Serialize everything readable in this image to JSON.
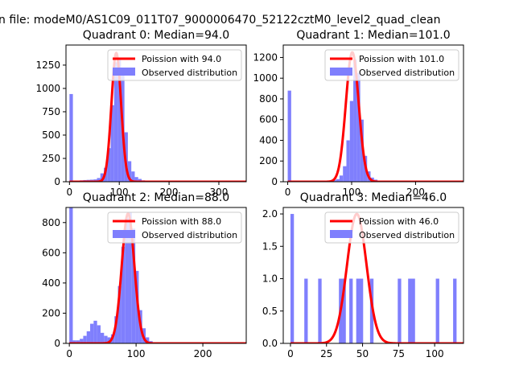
{
  "suptitle": "n file: modeM0/AS1C09_011T07_9000006470_52122cztM0_level2_quad_clean",
  "colors": {
    "hist": "#7f7ffd",
    "poisson": "#ff0000",
    "axes": "#000000",
    "background": "#ffffff"
  },
  "chart_data": [
    {
      "type": "bar",
      "title": "Quadrant 0: Median=94.0",
      "xlim": [
        -7,
        355
      ],
      "ylim": [
        0,
        1465
      ],
      "xticks": [
        0,
        100,
        200,
        300
      ],
      "xtick_labels": [
        "0",
        "100",
        "200",
        "300"
      ],
      "yticks": [
        0,
        250,
        500,
        750,
        1000,
        1250
      ],
      "ytick_labels": [
        "0",
        "250",
        "500",
        "750",
        "1000",
        "1250"
      ],
      "legend": {
        "placement": "upper-right",
        "entries": [
          "Poission with 94.0",
          "Observed distribution"
        ]
      },
      "poisson_mean": 94.0,
      "poisson_peak": 1380,
      "bin_width": 6.9,
      "bins": [
        {
          "x": 0,
          "y": 940
        },
        {
          "x": 13.8,
          "y": 12
        },
        {
          "x": 20.7,
          "y": 15
        },
        {
          "x": 27.6,
          "y": 18
        },
        {
          "x": 34.5,
          "y": 20
        },
        {
          "x": 41.4,
          "y": 22
        },
        {
          "x": 48.3,
          "y": 25
        },
        {
          "x": 55.2,
          "y": 40
        },
        {
          "x": 62.1,
          "y": 90
        },
        {
          "x": 69.0,
          "y": 150
        },
        {
          "x": 75.9,
          "y": 360
        },
        {
          "x": 82.8,
          "y": 820
        },
        {
          "x": 89.7,
          "y": 1280
        },
        {
          "x": 96.6,
          "y": 1330
        },
        {
          "x": 103.5,
          "y": 1150
        },
        {
          "x": 110.4,
          "y": 530
        },
        {
          "x": 117.3,
          "y": 220
        },
        {
          "x": 124.2,
          "y": 110
        },
        {
          "x": 131.1,
          "y": 50
        },
        {
          "x": 138.0,
          "y": 30
        },
        {
          "x": 144.9,
          "y": 15
        },
        {
          "x": 151.8,
          "y": 10
        }
      ]
    },
    {
      "type": "bar",
      "title": "Quadrant 1: Median=101.0",
      "xlim": [
        -7,
        275
      ],
      "ylim": [
        0,
        1320
      ],
      "xticks": [
        0,
        100,
        200
      ],
      "xtick_labels": [
        "0",
        "100",
        "200"
      ],
      "yticks": [
        0,
        200,
        400,
        600,
        800,
        1000,
        1200
      ],
      "ytick_labels": [
        "0",
        "200",
        "400",
        "600",
        "800",
        "1000",
        "1200"
      ],
      "legend": {
        "placement": "upper-right",
        "entries": [
          "Poission with 101.0",
          "Observed distribution"
        ]
      },
      "poisson_mean": 101.0,
      "poisson_peak": 1250,
      "bin_width": 5.4,
      "bins": [
        {
          "x": 0,
          "y": 880
        },
        {
          "x": 54.0,
          "y": 5
        },
        {
          "x": 59.4,
          "y": 8
        },
        {
          "x": 64.8,
          "y": 10
        },
        {
          "x": 70.2,
          "y": 15
        },
        {
          "x": 75.6,
          "y": 25
        },
        {
          "x": 81.0,
          "y": 60
        },
        {
          "x": 86.4,
          "y": 150
        },
        {
          "x": 91.8,
          "y": 400
        },
        {
          "x": 97.2,
          "y": 780
        },
        {
          "x": 102.6,
          "y": 1180
        },
        {
          "x": 108.0,
          "y": 1050
        },
        {
          "x": 113.4,
          "y": 600
        },
        {
          "x": 118.8,
          "y": 250
        },
        {
          "x": 124.2,
          "y": 100
        },
        {
          "x": 129.6,
          "y": 40
        },
        {
          "x": 135.0,
          "y": 20
        },
        {
          "x": 140.4,
          "y": 10
        },
        {
          "x": 145.8,
          "y": 6
        },
        {
          "x": 151.2,
          "y": 4
        }
      ]
    },
    {
      "type": "bar",
      "title": "Quadrant 2: Median=88.0",
      "xlim": [
        -5,
        265
      ],
      "ylim": [
        0,
        900
      ],
      "xticks": [
        0,
        100,
        200
      ],
      "xtick_labels": [
        "0",
        "100",
        "200"
      ],
      "yticks": [
        0,
        200,
        400,
        600,
        800
      ],
      "ytick_labels": [
        "0",
        "200",
        "400",
        "600",
        "800"
      ],
      "legend": {
        "placement": "upper-right",
        "entries": [
          "Poission with 88.0",
          "Observed distribution"
        ]
      },
      "poisson_mean": 88.0,
      "poisson_peak": 860,
      "bin_width": 5.2,
      "bins": [
        {
          "x": 0,
          "y": 900
        },
        {
          "x": 5.2,
          "y": 20
        },
        {
          "x": 10.4,
          "y": 20
        },
        {
          "x": 15.6,
          "y": 30
        },
        {
          "x": 20.8,
          "y": 50
        },
        {
          "x": 26.0,
          "y": 80
        },
        {
          "x": 31.2,
          "y": 130
        },
        {
          "x": 36.4,
          "y": 150
        },
        {
          "x": 41.6,
          "y": 120
        },
        {
          "x": 46.8,
          "y": 70
        },
        {
          "x": 52.0,
          "y": 50
        },
        {
          "x": 57.2,
          "y": 40
        },
        {
          "x": 62.4,
          "y": 60
        },
        {
          "x": 67.6,
          "y": 180
        },
        {
          "x": 72.8,
          "y": 380
        },
        {
          "x": 78.0,
          "y": 640
        },
        {
          "x": 83.2,
          "y": 830
        },
        {
          "x": 88.4,
          "y": 870
        },
        {
          "x": 93.6,
          "y": 760
        },
        {
          "x": 98.8,
          "y": 480
        },
        {
          "x": 104.0,
          "y": 220
        },
        {
          "x": 109.2,
          "y": 100
        },
        {
          "x": 114.4,
          "y": 40
        },
        {
          "x": 119.6,
          "y": 15
        }
      ]
    },
    {
      "type": "bar",
      "title": "Quadrant 3: Median=46.0",
      "xlim": [
        -5,
        120
      ],
      "ylim": [
        0,
        2.1
      ],
      "xticks": [
        0,
        25,
        50,
        75,
        100
      ],
      "xtick_labels": [
        "0",
        "25",
        "50",
        "75",
        "100"
      ],
      "yticks": [
        0,
        0.5,
        1.0,
        1.5,
        2.0
      ],
      "ytick_labels": [
        "0.0",
        "0.5",
        "1.0",
        "1.5",
        "2.0"
      ],
      "legend": {
        "placement": "upper-right",
        "entries": [
          "Poission with 46.0",
          "Observed distribution"
        ]
      },
      "poisson_mean": 46.0,
      "poisson_peak": 2.0,
      "bin_width": 2.4,
      "bins": [
        {
          "x": 0,
          "y": 2
        },
        {
          "x": 9.6,
          "y": 1
        },
        {
          "x": 19.2,
          "y": 1
        },
        {
          "x": 33.6,
          "y": 1
        },
        {
          "x": 36.0,
          "y": 1
        },
        {
          "x": 40.8,
          "y": 1
        },
        {
          "x": 45.6,
          "y": 1
        },
        {
          "x": 48.0,
          "y": 1
        },
        {
          "x": 55.2,
          "y": 1
        },
        {
          "x": 74.4,
          "y": 1
        },
        {
          "x": 81.6,
          "y": 1
        },
        {
          "x": 84.0,
          "y": 1
        },
        {
          "x": 100.8,
          "y": 1
        },
        {
          "x": 112.8,
          "y": 1
        }
      ]
    }
  ]
}
